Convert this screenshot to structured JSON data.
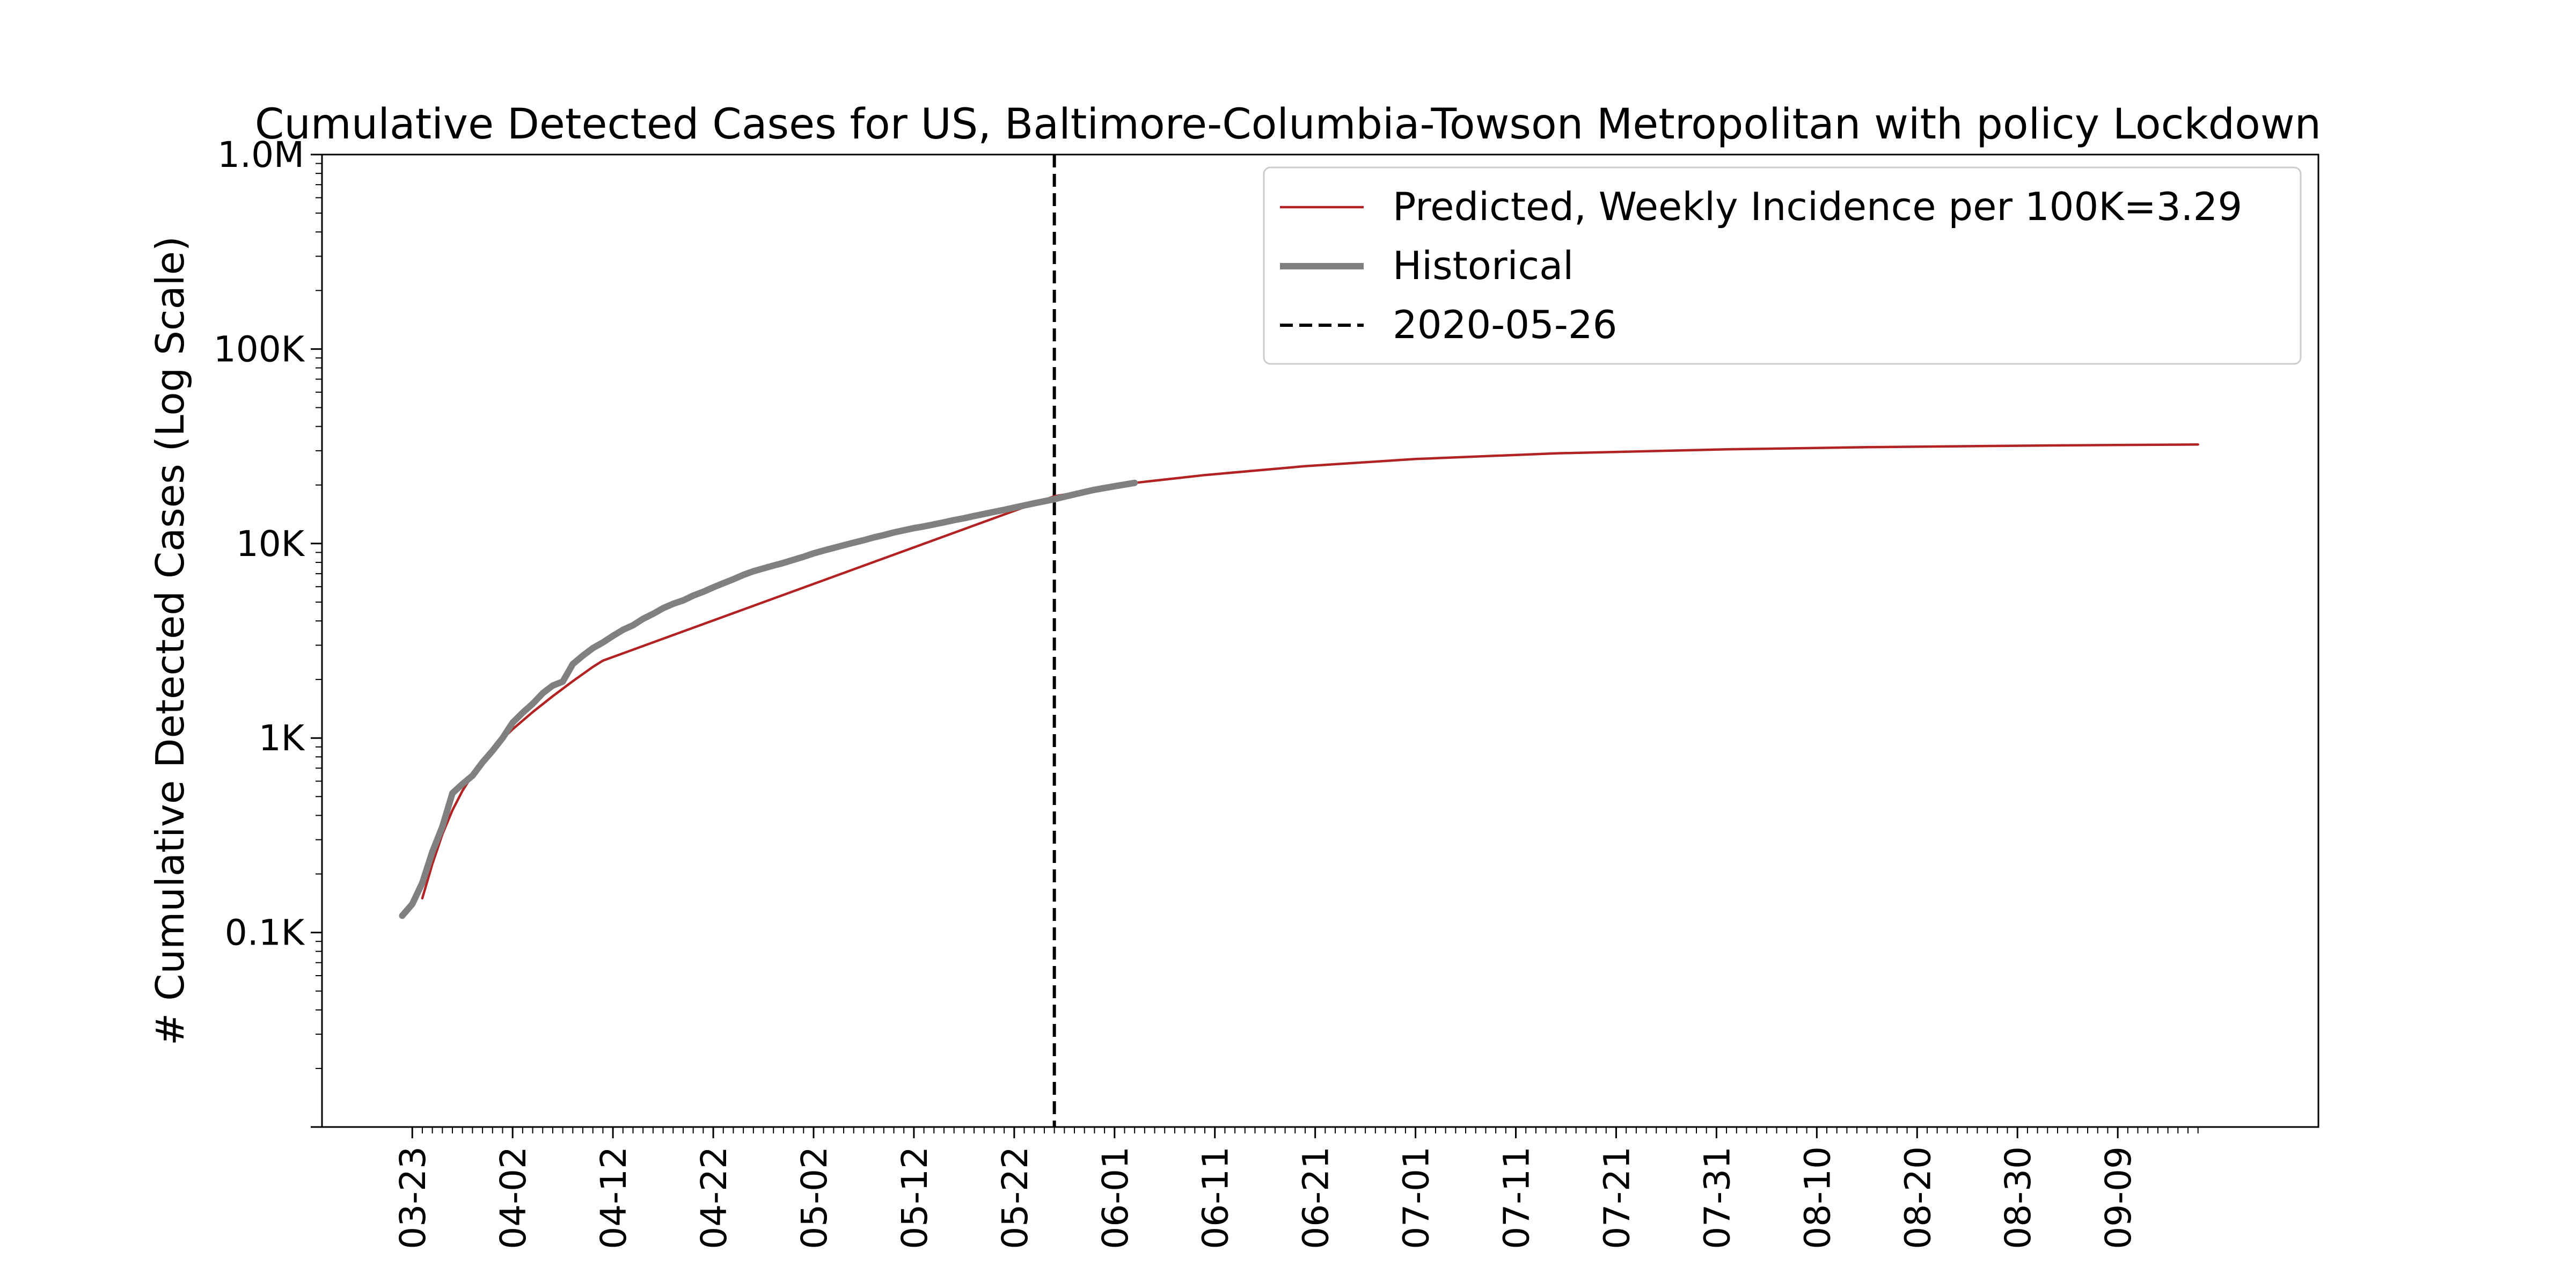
{
  "chart_data": {
    "type": "line",
    "title": "Cumulative Detected Cases for US, Baltimore-Columbia-Towson Metropolitan with policy Lockdown",
    "xlabel": "",
    "ylabel": "# Cumulative Detected Cases (Log Scale)",
    "y_scale": "log",
    "ylim": [
      10,
      1000000
    ],
    "y_ticks": [
      {
        "value": 100,
        "label": "0.1K"
      },
      {
        "value": 1000,
        "label": "1K"
      },
      {
        "value": 10000,
        "label": "10K"
      },
      {
        "value": 100000,
        "label": "100K"
      },
      {
        "value": 1000000,
        "label": "1.0M"
      }
    ],
    "xlim": [
      "2020-03-14",
      "2020-09-29"
    ],
    "x_ticks": [
      {
        "date": "2020-03-23",
        "label": "03-23"
      },
      {
        "date": "2020-04-02",
        "label": "04-02"
      },
      {
        "date": "2020-04-12",
        "label": "04-12"
      },
      {
        "date": "2020-04-22",
        "label": "04-22"
      },
      {
        "date": "2020-05-02",
        "label": "05-02"
      },
      {
        "date": "2020-05-12",
        "label": "05-12"
      },
      {
        "date": "2020-05-22",
        "label": "05-22"
      },
      {
        "date": "2020-06-01",
        "label": "06-01"
      },
      {
        "date": "2020-06-11",
        "label": "06-11"
      },
      {
        "date": "2020-06-21",
        "label": "06-21"
      },
      {
        "date": "2020-07-01",
        "label": "07-01"
      },
      {
        "date": "2020-07-11",
        "label": "07-11"
      },
      {
        "date": "2020-07-21",
        "label": "07-21"
      },
      {
        "date": "2020-07-31",
        "label": "07-31"
      },
      {
        "date": "2020-08-10",
        "label": "08-10"
      },
      {
        "date": "2020-08-20",
        "label": "08-20"
      },
      {
        "date": "2020-08-30",
        "label": "08-30"
      },
      {
        "date": "2020-09-09",
        "label": "09-09"
      }
    ],
    "minor_ticks": {
      "start": "2020-03-23",
      "end": "2020-09-17",
      "interval_days": 1
    },
    "vline": {
      "date": "2020-05-26",
      "label": "2020-05-26",
      "color": "#000000",
      "style": "dashed"
    },
    "legend": {
      "position": "top-right"
    },
    "series": [
      {
        "name": "Predicted, Weekly Incidence per 100K=3.29",
        "color": "#b22222",
        "points": [
          [
            "2020-03-24",
            150
          ],
          [
            "2020-03-25",
            225
          ],
          [
            "2020-03-26",
            320
          ],
          [
            "2020-03-27",
            425
          ],
          [
            "2020-03-28",
            535
          ],
          [
            "2020-03-29",
            645
          ],
          [
            "2020-03-30",
            760
          ],
          [
            "2020-03-31",
            880
          ],
          [
            "2020-04-02",
            1110
          ],
          [
            "2020-04-04",
            1360
          ],
          [
            "2020-04-06",
            1640
          ],
          [
            "2020-04-08",
            1960
          ],
          [
            "2020-04-10",
            2320
          ],
          [
            "2020-04-11",
            2500
          ],
          [
            "2020-05-26",
            17500
          ],
          [
            "2020-06-03",
            20500
          ],
          [
            "2020-06-10",
            22500
          ],
          [
            "2020-06-20",
            25000
          ],
          [
            "2020-07-01",
            27200
          ],
          [
            "2020-07-15",
            29100
          ],
          [
            "2020-08-01",
            30500
          ],
          [
            "2020-08-15",
            31300
          ],
          [
            "2020-09-01",
            31900
          ],
          [
            "2020-09-17",
            32300
          ]
        ]
      },
      {
        "name": "Historical",
        "color": "#808080",
        "points": [
          [
            "2020-03-22",
            122
          ],
          [
            "2020-03-23",
            140
          ],
          [
            "2020-03-24",
            180
          ],
          [
            "2020-03-25",
            260
          ],
          [
            "2020-03-26",
            350
          ],
          [
            "2020-03-27",
            520
          ],
          [
            "2020-03-28",
            580
          ],
          [
            "2020-03-29",
            640
          ],
          [
            "2020-03-30",
            750
          ],
          [
            "2020-03-31",
            860
          ],
          [
            "2020-04-01",
            1000
          ],
          [
            "2020-04-02",
            1200
          ],
          [
            "2020-04-03",
            1350
          ],
          [
            "2020-04-04",
            1500
          ],
          [
            "2020-04-05",
            1700
          ],
          [
            "2020-04-06",
            1860
          ],
          [
            "2020-04-07",
            1950
          ],
          [
            "2020-04-08",
            2400
          ],
          [
            "2020-04-09",
            2650
          ],
          [
            "2020-04-10",
            2900
          ],
          [
            "2020-04-11",
            3100
          ],
          [
            "2020-04-12",
            3350
          ],
          [
            "2020-04-13",
            3600
          ],
          [
            "2020-04-14",
            3800
          ],
          [
            "2020-04-15",
            4100
          ],
          [
            "2020-04-16",
            4350
          ],
          [
            "2020-04-17",
            4650
          ],
          [
            "2020-04-18",
            4900
          ],
          [
            "2020-04-19",
            5100
          ],
          [
            "2020-04-20",
            5400
          ],
          [
            "2020-04-21",
            5650
          ],
          [
            "2020-04-22",
            5950
          ],
          [
            "2020-04-23",
            6250
          ],
          [
            "2020-04-24",
            6550
          ],
          [
            "2020-04-25",
            6900
          ],
          [
            "2020-04-26",
            7200
          ],
          [
            "2020-04-27",
            7450
          ],
          [
            "2020-04-28",
            7700
          ],
          [
            "2020-04-29",
            7950
          ],
          [
            "2020-04-30",
            8250
          ],
          [
            "2020-05-01",
            8550
          ],
          [
            "2020-05-02",
            8900
          ],
          [
            "2020-05-03",
            9200
          ],
          [
            "2020-05-04",
            9500
          ],
          [
            "2020-05-05",
            9800
          ],
          [
            "2020-05-06",
            10100
          ],
          [
            "2020-05-07",
            10400
          ],
          [
            "2020-05-08",
            10750
          ],
          [
            "2020-05-09",
            11050
          ],
          [
            "2020-05-10",
            11400
          ],
          [
            "2020-05-11",
            11700
          ],
          [
            "2020-05-12",
            12000
          ],
          [
            "2020-05-13",
            12250
          ],
          [
            "2020-05-14",
            12550
          ],
          [
            "2020-05-15",
            12850
          ],
          [
            "2020-05-16",
            13200
          ],
          [
            "2020-05-17",
            13500
          ],
          [
            "2020-05-18",
            13850
          ],
          [
            "2020-05-19",
            14200
          ],
          [
            "2020-05-20",
            14550
          ],
          [
            "2020-05-21",
            14900
          ],
          [
            "2020-05-22",
            15300
          ],
          [
            "2020-05-23",
            15700
          ],
          [
            "2020-05-24",
            16100
          ],
          [
            "2020-05-25",
            16500
          ],
          [
            "2020-05-26",
            16900
          ],
          [
            "2020-05-27",
            17400
          ],
          [
            "2020-05-28",
            17900
          ],
          [
            "2020-05-29",
            18400
          ],
          [
            "2020-05-30",
            18900
          ],
          [
            "2020-05-31",
            19300
          ],
          [
            "2020-06-01",
            19700
          ],
          [
            "2020-06-02",
            20100
          ],
          [
            "2020-06-03",
            20500
          ]
        ]
      }
    ]
  }
}
